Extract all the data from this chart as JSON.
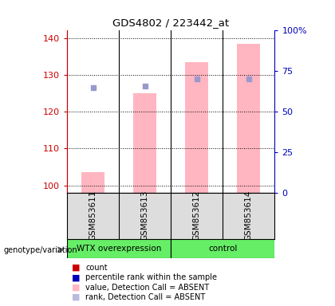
{
  "title": "GDS4802 / 223442_at",
  "samples": [
    "GSM853611",
    "GSM853613",
    "GSM853612",
    "GSM853614"
  ],
  "group_names": [
    "WTX overexpression",
    "control"
  ],
  "ylim_left": [
    98,
    142
  ],
  "ylim_right": [
    0,
    100
  ],
  "yticks_left": [
    100,
    110,
    120,
    130,
    140
  ],
  "yticks_right": [
    0,
    25,
    50,
    75,
    100
  ],
  "ytick_labels_right": [
    "0",
    "25",
    "50",
    "75",
    "100%"
  ],
  "pink_bar_values": [
    103.5,
    125.0,
    133.5,
    138.5
  ],
  "blue_dot_values": [
    126.5,
    127.0,
    129.0,
    129.0
  ],
  "pink_bar_color": "#FFB6C1",
  "blue_dot_color": "#9999CC",
  "bar_width": 0.45,
  "left_axis_color": "#CC0000",
  "right_axis_color": "#0000BB",
  "background_color": "#FFFFFF",
  "plot_bg_color": "#FFFFFF",
  "sample_box_color": "#DDDDDD",
  "group_box_color": "#66EE66",
  "genotype_label": "genotype/variation",
  "legend_colors": [
    "#CC0000",
    "#0000BB",
    "#FFB6C1",
    "#BBBBDD"
  ],
  "legend_labels": [
    "count",
    "percentile rank within the sample",
    "value, Detection Call = ABSENT",
    "rank, Detection Call = ABSENT"
  ]
}
